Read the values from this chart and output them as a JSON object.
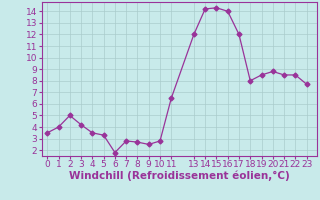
{
  "x": [
    0,
    1,
    2,
    3,
    4,
    5,
    6,
    7,
    8,
    9,
    10,
    11,
    13,
    14,
    15,
    16,
    17,
    18,
    19,
    20,
    21,
    22,
    23
  ],
  "y": [
    3.5,
    4.0,
    5.0,
    4.2,
    3.5,
    3.3,
    1.8,
    2.8,
    2.7,
    2.5,
    2.8,
    6.5,
    12.0,
    14.2,
    14.3,
    14.0,
    12.0,
    8.0,
    8.5,
    8.8,
    8.5,
    8.5,
    7.7
  ],
  "line_color": "#993399",
  "marker": "D",
  "marker_size": 2.5,
  "bg_color": "#c8eaea",
  "grid_color": "#aacccc",
  "xlabel": "Windchill (Refroidissement éolien,°C)",
  "xlabel_color": "#993399",
  "xlim": [
    -0.5,
    23.9
  ],
  "ylim": [
    1.5,
    14.8
  ],
  "yticks": [
    2,
    3,
    4,
    5,
    6,
    7,
    8,
    9,
    10,
    11,
    12,
    13,
    14
  ],
  "xticks": [
    0,
    1,
    2,
    3,
    4,
    5,
    6,
    7,
    8,
    9,
    10,
    11,
    13,
    14,
    15,
    16,
    17,
    18,
    19,
    20,
    21,
    22,
    23
  ],
  "xtick_labels": [
    "0",
    "1",
    "2",
    "3",
    "4",
    "5",
    "6",
    "7",
    "8",
    "9",
    "10",
    "11",
    "13",
    "14",
    "15",
    "16",
    "17",
    "18",
    "19",
    "20",
    "21",
    "22",
    "23"
  ],
  "tick_color": "#993399",
  "font_size": 6.5,
  "xlabel_fontsize": 7.5
}
